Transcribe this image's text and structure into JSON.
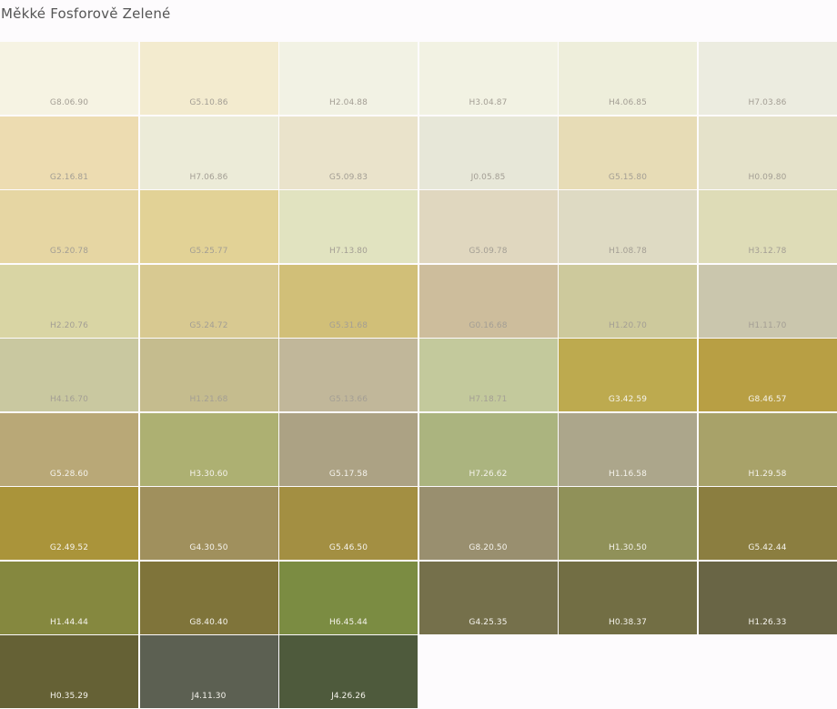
{
  "page": {
    "title": "Měkké Fosforově Zelené"
  },
  "swatches": [
    {
      "code": "G8.06.90",
      "color": "#f6f3e3",
      "text": "light"
    },
    {
      "code": "G5.10.86",
      "color": "#f3ebcf",
      "text": "light"
    },
    {
      "code": "H2.04.88",
      "color": "#f2f2e4",
      "text": "light"
    },
    {
      "code": "H3.04.87",
      "color": "#f2f2e3",
      "text": "light"
    },
    {
      "code": "H4.06.85",
      "color": "#eeeedb",
      "text": "light"
    },
    {
      "code": "H7.03.86",
      "color": "#ecece0",
      "text": "light"
    },
    {
      "code": "G2.16.81",
      "color": "#eddcb1",
      "text": "light"
    },
    {
      "code": "H7.06.86",
      "color": "#ecebd8",
      "text": "light"
    },
    {
      "code": "G5.09.83",
      "color": "#eae3cb",
      "text": "light"
    },
    {
      "code": "J0.05.85",
      "color": "#e7e7d8",
      "text": "light"
    },
    {
      "code": "G5.15.80",
      "color": "#e7dcb6",
      "text": "light"
    },
    {
      "code": "H0.09.80",
      "color": "#e5e2ca",
      "text": "light"
    },
    {
      "code": "G5.20.78",
      "color": "#e6d6a3",
      "text": "light"
    },
    {
      "code": "G5.25.77",
      "color": "#e2d296",
      "text": "light"
    },
    {
      "code": "H7.13.80",
      "color": "#e1e3c0",
      "text": "light"
    },
    {
      "code": "G5.09.78",
      "color": "#e0d7bf",
      "text": "light"
    },
    {
      "code": "H1.08.78",
      "color": "#dedac3",
      "text": "light"
    },
    {
      "code": "H3.12.78",
      "color": "#dedcb7",
      "text": "light"
    },
    {
      "code": "H2.20.76",
      "color": "#d9d5a4",
      "text": "light"
    },
    {
      "code": "G5.24.72",
      "color": "#d8c991",
      "text": "light"
    },
    {
      "code": "G5.31.68",
      "color": "#d1bf78",
      "text": "light"
    },
    {
      "code": "G0.16.68",
      "color": "#cdbd9c",
      "text": "light"
    },
    {
      "code": "H1.20.70",
      "color": "#cdc99c",
      "text": "light"
    },
    {
      "code": "H1.11.70",
      "color": "#cac6ad",
      "text": "light"
    },
    {
      "code": "H4.16.70",
      "color": "#c9c8a0",
      "text": "light"
    },
    {
      "code": "H1.21.68",
      "color": "#c5bc8e",
      "text": "light"
    },
    {
      "code": "G5.13.66",
      "color": "#c1b79a",
      "text": "light"
    },
    {
      "code": "H7.18.71",
      "color": "#c3c99c",
      "text": "light"
    },
    {
      "code": "G3.42.59",
      "color": "#bdaa4f",
      "text": "dark"
    },
    {
      "code": "G8.46.57",
      "color": "#b89f44",
      "text": "dark"
    },
    {
      "code": "G5.28.60",
      "color": "#b9a877",
      "text": "dark"
    },
    {
      "code": "H3.30.60",
      "color": "#adb072",
      "text": "dark"
    },
    {
      "code": "G5.17.58",
      "color": "#aca284",
      "text": "dark"
    },
    {
      "code": "H7.26.62",
      "color": "#abb47f",
      "text": "dark"
    },
    {
      "code": "H1.16.58",
      "color": "#aca68b",
      "text": "dark"
    },
    {
      "code": "H1.29.58",
      "color": "#a8a269",
      "text": "dark"
    },
    {
      "code": "G2.49.52",
      "color": "#aa943a",
      "text": "dark"
    },
    {
      "code": "G4.30.50",
      "color": "#a0905d",
      "text": "dark"
    },
    {
      "code": "G5.46.50",
      "color": "#a38f42",
      "text": "dark"
    },
    {
      "code": "G8.20.50",
      "color": "#998f6f",
      "text": "dark"
    },
    {
      "code": "H1.30.50",
      "color": "#909159",
      "text": "dark"
    },
    {
      "code": "G5.42.44",
      "color": "#8b7e40",
      "text": "dark"
    },
    {
      "code": "H1.44.44",
      "color": "#85883f",
      "text": "dark"
    },
    {
      "code": "G8.40.40",
      "color": "#7f743a",
      "text": "dark"
    },
    {
      "code": "H6.45.44",
      "color": "#7b8c42",
      "text": "dark"
    },
    {
      "code": "G4.25.35",
      "color": "#75704b",
      "text": "dark"
    },
    {
      "code": "H0.38.37",
      "color": "#726e44",
      "text": "dark"
    },
    {
      "code": "H1.26.33",
      "color": "#696545",
      "text": "dark"
    },
    {
      "code": "H0.35.29",
      "color": "#656135",
      "text": "dark"
    },
    {
      "code": "J4.11.30",
      "color": "#5c6052",
      "text": "dark"
    },
    {
      "code": "J4.26.26",
      "color": "#4e5a3c",
      "text": "dark"
    }
  ]
}
